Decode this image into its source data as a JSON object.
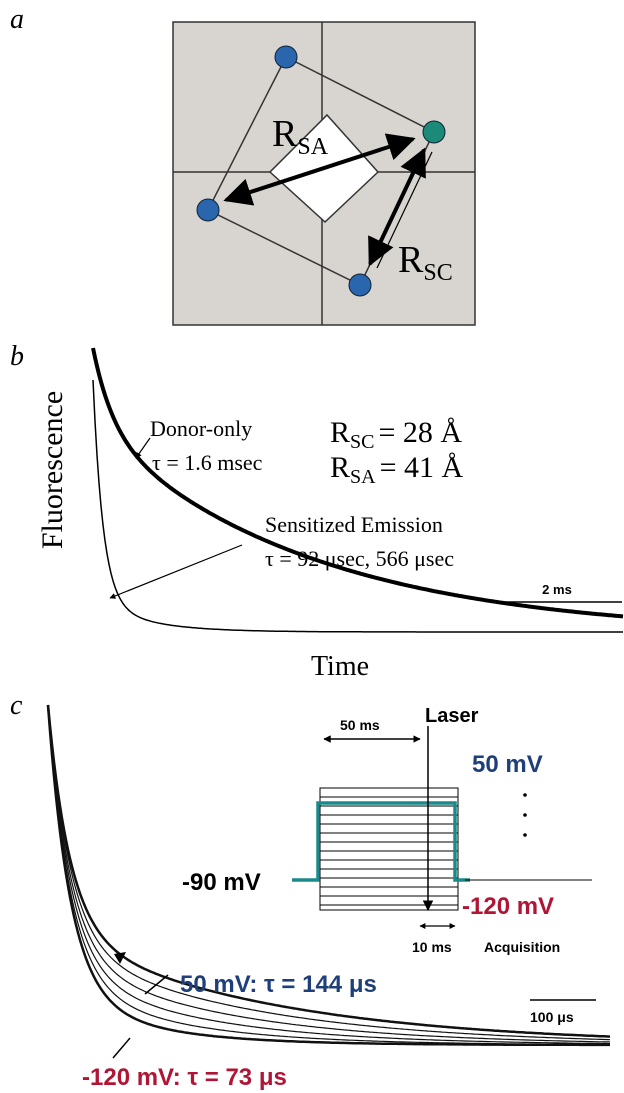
{
  "panel_a": {
    "label": "a",
    "r_sa": {
      "symbol": "R",
      "subscript": "SA"
    },
    "r_sc": {
      "symbol": "R",
      "subscript": "SC"
    }
  },
  "panel_b": {
    "label": "b",
    "y_axis": "Fluorescence",
    "x_axis": "Time",
    "donor_only": "Donor-only",
    "donor_tau": "τ = 1.6 msec",
    "r_sc": {
      "symbol": "R",
      "subscript": "SC",
      "value": "= 28 Å"
    },
    "r_sa": {
      "symbol": "R",
      "subscript": "SA",
      "value": "= 41 Å"
    },
    "sensitized": "Sensitized Emission",
    "sensitized_tau": "τ = 92 μsec, 566 μsec",
    "scale_bar": "2 ms"
  },
  "panel_c": {
    "label": "c",
    "laser": "Laser",
    "pulse_width": "50 ms",
    "top_voltage": "50 mV",
    "holding": "-90 mV",
    "bottom_voltage": "-120 mV",
    "delay": "10 ms",
    "acquisition": "Acquisition",
    "fit_top": "50 mV:  τ = 144 μs",
    "fit_bottom": "-120 mV: τ = 73 μs",
    "scale_bar": "100 μs"
  }
}
